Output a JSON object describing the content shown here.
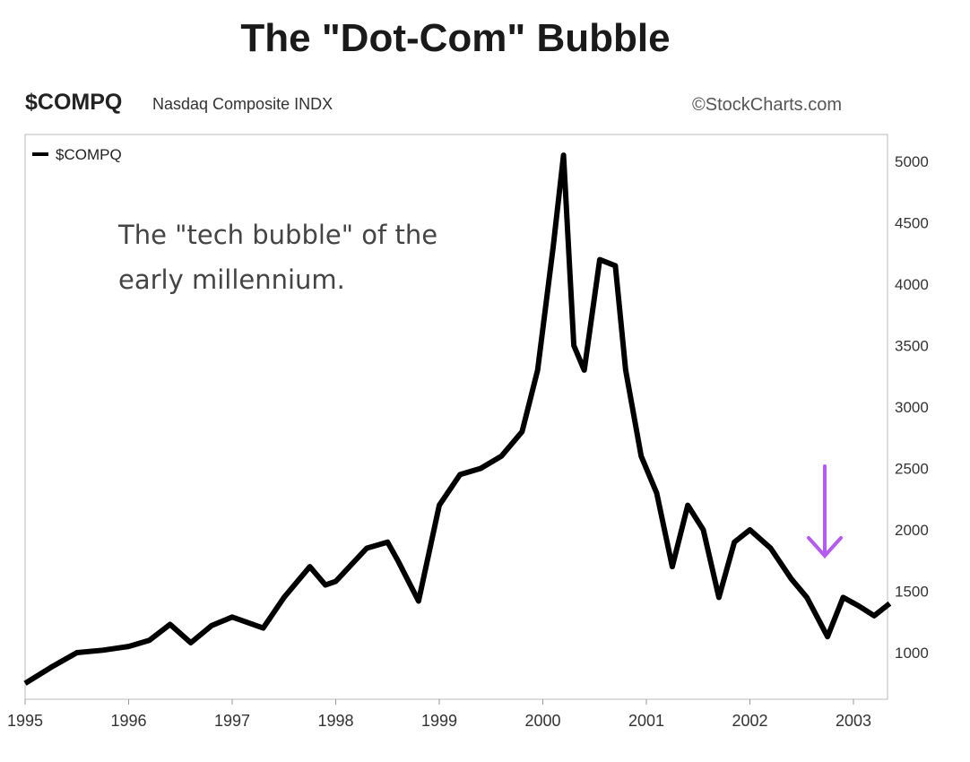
{
  "title": "The \"Dot-Com\" Bubble",
  "header": {
    "symbol": "$COMPQ",
    "description": "Nasdaq Composite INDX",
    "credit": "©StockCharts.com"
  },
  "colors": {
    "line": "#000000",
    "arrow": "#b45cf0"
  },
  "chart_data": {
    "type": "line",
    "legend": "$COMPQ",
    "legend_position": "top-left",
    "annotation": "The \"tech bubble\" of the early millennium.",
    "annotation_lines": [
      "The \"tech bubble\" of the",
      "early millennium."
    ],
    "xlim": [
      1995,
      2003.4
    ],
    "ylim": [
      700,
      5200
    ],
    "x_ticks": [
      "1995",
      "1996",
      "1997",
      "1998",
      "1999",
      "2000",
      "2001",
      "2002",
      "2003"
    ],
    "y_ticks": [
      "1000",
      "1500",
      "2000",
      "2500",
      "3000",
      "3500",
      "4000",
      "4500",
      "5000"
    ],
    "y_axis_side": "right",
    "grid": false,
    "series": [
      {
        "name": "$COMPQ",
        "x": [
          1995.0,
          1995.25,
          1995.5,
          1995.75,
          1996.0,
          1996.2,
          1996.4,
          1996.6,
          1996.8,
          1997.0,
          1997.3,
          1997.5,
          1997.75,
          1997.9,
          1998.0,
          1998.3,
          1998.5,
          1998.6,
          1998.8,
          1999.0,
          1999.2,
          1999.4,
          1999.6,
          1999.8,
          1999.95,
          2000.1,
          2000.2,
          2000.3,
          2000.4,
          2000.55,
          2000.7,
          2000.8,
          2000.95,
          2001.1,
          2001.25,
          2001.4,
          2001.55,
          2001.7,
          2001.85,
          2002.0,
          2002.2,
          2002.4,
          2002.55,
          2002.75,
          2002.9,
          2003.05,
          2003.2,
          2003.35
        ],
        "y": [
          750,
          880,
          1000,
          1020,
          1050,
          1100,
          1230,
          1080,
          1220,
          1290,
          1200,
          1450,
          1700,
          1550,
          1580,
          1850,
          1900,
          1750,
          1420,
          2200,
          2450,
          2500,
          2600,
          2800,
          3300,
          4300,
          5050,
          3500,
          3300,
          4200,
          4150,
          3300,
          2600,
          2300,
          1700,
          2200,
          2000,
          1450,
          1900,
          2000,
          1850,
          1600,
          1450,
          1130,
          1450,
          1380,
          1300,
          1400
        ]
      }
    ]
  }
}
